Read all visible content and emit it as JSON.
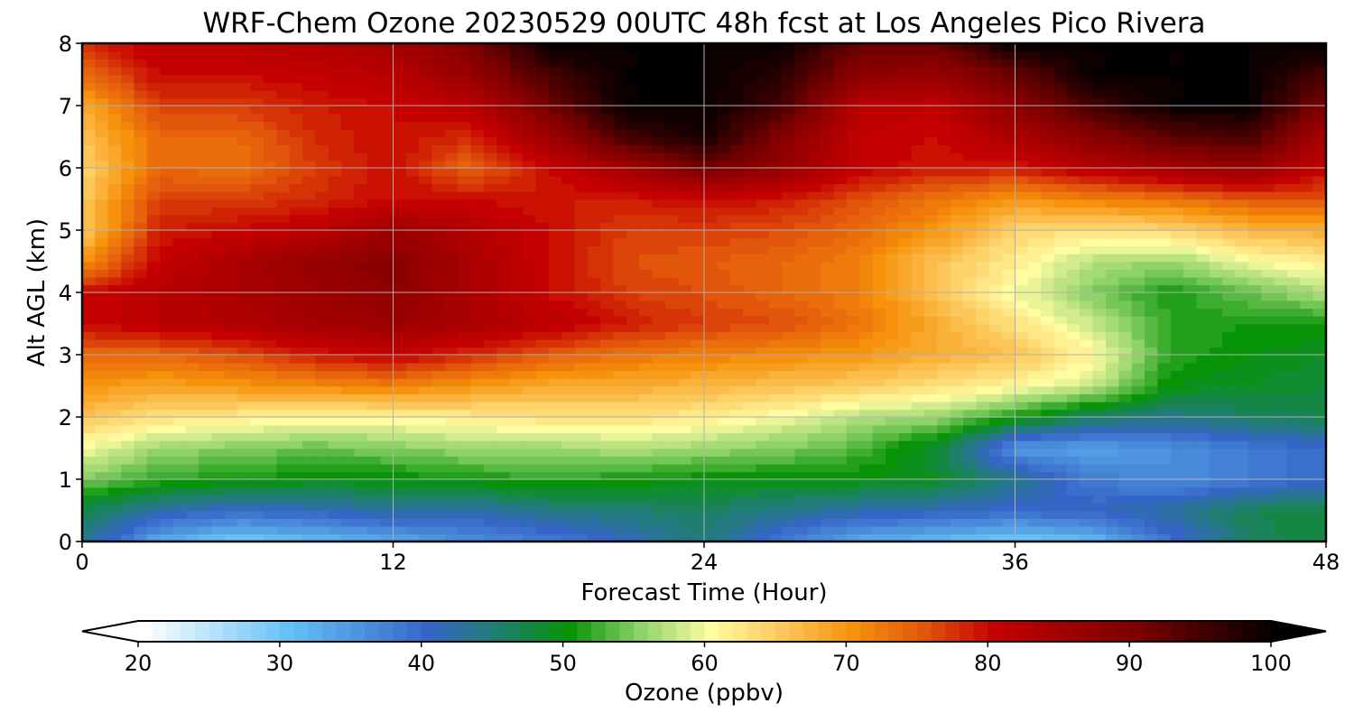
{
  "chart_data": {
    "type": "heatmap",
    "title": "WRF-Chem Ozone  20230529 00UTC 48h fcst at Los Angeles Pico Rivera",
    "xlabel": "Forecast Time (Hour)",
    "ylabel": "Alt AGL (km)",
    "xlim": [
      0,
      48
    ],
    "ylim": [
      0,
      8
    ],
    "x_ticks": [
      "0",
      "12",
      "24",
      "36",
      "48"
    ],
    "y_ticks": [
      "0",
      "1",
      "2",
      "3",
      "4",
      "5",
      "6",
      "7",
      "8"
    ],
    "grid": true,
    "x": [
      0,
      3,
      6,
      9,
      12,
      15,
      18,
      21,
      24,
      27,
      30,
      33,
      36,
      39,
      42,
      45,
      48
    ],
    "y": [
      0,
      0.5,
      1,
      1.5,
      2,
      2.5,
      3,
      3.5,
      4,
      4.5,
      5,
      5.5,
      6,
      6.5,
      7,
      7.5,
      8
    ],
    "z": [
      [
        44,
        33,
        29,
        31,
        33,
        36,
        38,
        41,
        45,
        38,
        33,
        31,
        29,
        31,
        39,
        46,
        48
      ],
      [
        47,
        42,
        40,
        41,
        43,
        42,
        44,
        45,
        46,
        44,
        42,
        41,
        40,
        41,
        43,
        47,
        48
      ],
      [
        55,
        52,
        51,
        50,
        50,
        51,
        52,
        51,
        50,
        50,
        50,
        49,
        44,
        38,
        36,
        38,
        40
      ],
      [
        60,
        56,
        55,
        54,
        55,
        56,
        56,
        57,
        56,
        55,
        53,
        48,
        35,
        34,
        36,
        38,
        40
      ],
      [
        66,
        63,
        62,
        61,
        61,
        62,
        63,
        63,
        62,
        60,
        57,
        56,
        51,
        46,
        44,
        46,
        47
      ],
      [
        70,
        69,
        70,
        71,
        72,
        70,
        68,
        68,
        67,
        66,
        65,
        63,
        61,
        58,
        50,
        49,
        48
      ],
      [
        74,
        74,
        76,
        79,
        81,
        78,
        75,
        73,
        72,
        71,
        70,
        68,
        66,
        61,
        52,
        50,
        49
      ],
      [
        80,
        82,
        83,
        85,
        86,
        84,
        82,
        79,
        77,
        76,
        73,
        68,
        63,
        58,
        52,
        51,
        51
      ],
      [
        80,
        82,
        84,
        86,
        88,
        84,
        80,
        77,
        76,
        74,
        72,
        66,
        60,
        55,
        51,
        54,
        57
      ],
      [
        70,
        81,
        84,
        87,
        89,
        84,
        80,
        76,
        75,
        74,
        72,
        66,
        62,
        57,
        56,
        60,
        62
      ],
      [
        65,
        79,
        80,
        82,
        86,
        83,
        80,
        77,
        77,
        76,
        74,
        70,
        64,
        63,
        64,
        67,
        68
      ],
      [
        65,
        77,
        77,
        78,
        80,
        80,
        79,
        79,
        80,
        79,
        76,
        73,
        70,
        72,
        73,
        75,
        76
      ],
      [
        64,
        74,
        73,
        77,
        80,
        74,
        80,
        85,
        91,
        87,
        81,
        79,
        79,
        82,
        85,
        87,
        80
      ],
      [
        66,
        74,
        74,
        78,
        80,
        78,
        86,
        95,
        99,
        89,
        81,
        80,
        84,
        89,
        93,
        95,
        84
      ],
      [
        68,
        77,
        77,
        79,
        80,
        82,
        91,
        100,
        100,
        95,
        82,
        81,
        88,
        95,
        100,
        100,
        90
      ],
      [
        74,
        80,
        80,
        81,
        82,
        87,
        95,
        100,
        100,
        97,
        88,
        87,
        92,
        100,
        100,
        100,
        95
      ],
      [
        78,
        82,
        82,
        83,
        85,
        90,
        100,
        100,
        100,
        100,
        92,
        92,
        100,
        100,
        100,
        100,
        100
      ]
    ],
    "colorbar": {
      "label": "Ozone  (ppbv)",
      "min": 20,
      "max": 100,
      "extend": "both",
      "ticks": [
        "20",
        "30",
        "40",
        "50",
        "60",
        "70",
        "80",
        "90",
        "100"
      ],
      "colors": [
        {
          "value": 20,
          "color": "#ffffff"
        },
        {
          "value": 30,
          "color": "#66c2f6"
        },
        {
          "value": 40,
          "color": "#3566c7"
        },
        {
          "value": 45,
          "color": "#1f7f6f"
        },
        {
          "value": 50,
          "color": "#079407"
        },
        {
          "value": 55,
          "color": "#8fd26a"
        },
        {
          "value": 60,
          "color": "#fffca2"
        },
        {
          "value": 65,
          "color": "#fcc75a"
        },
        {
          "value": 70,
          "color": "#f6920b"
        },
        {
          "value": 75,
          "color": "#e2560b"
        },
        {
          "value": 80,
          "color": "#c40000"
        },
        {
          "value": 90,
          "color": "#7c0000"
        },
        {
          "value": 100,
          "color": "#000000"
        }
      ]
    }
  }
}
